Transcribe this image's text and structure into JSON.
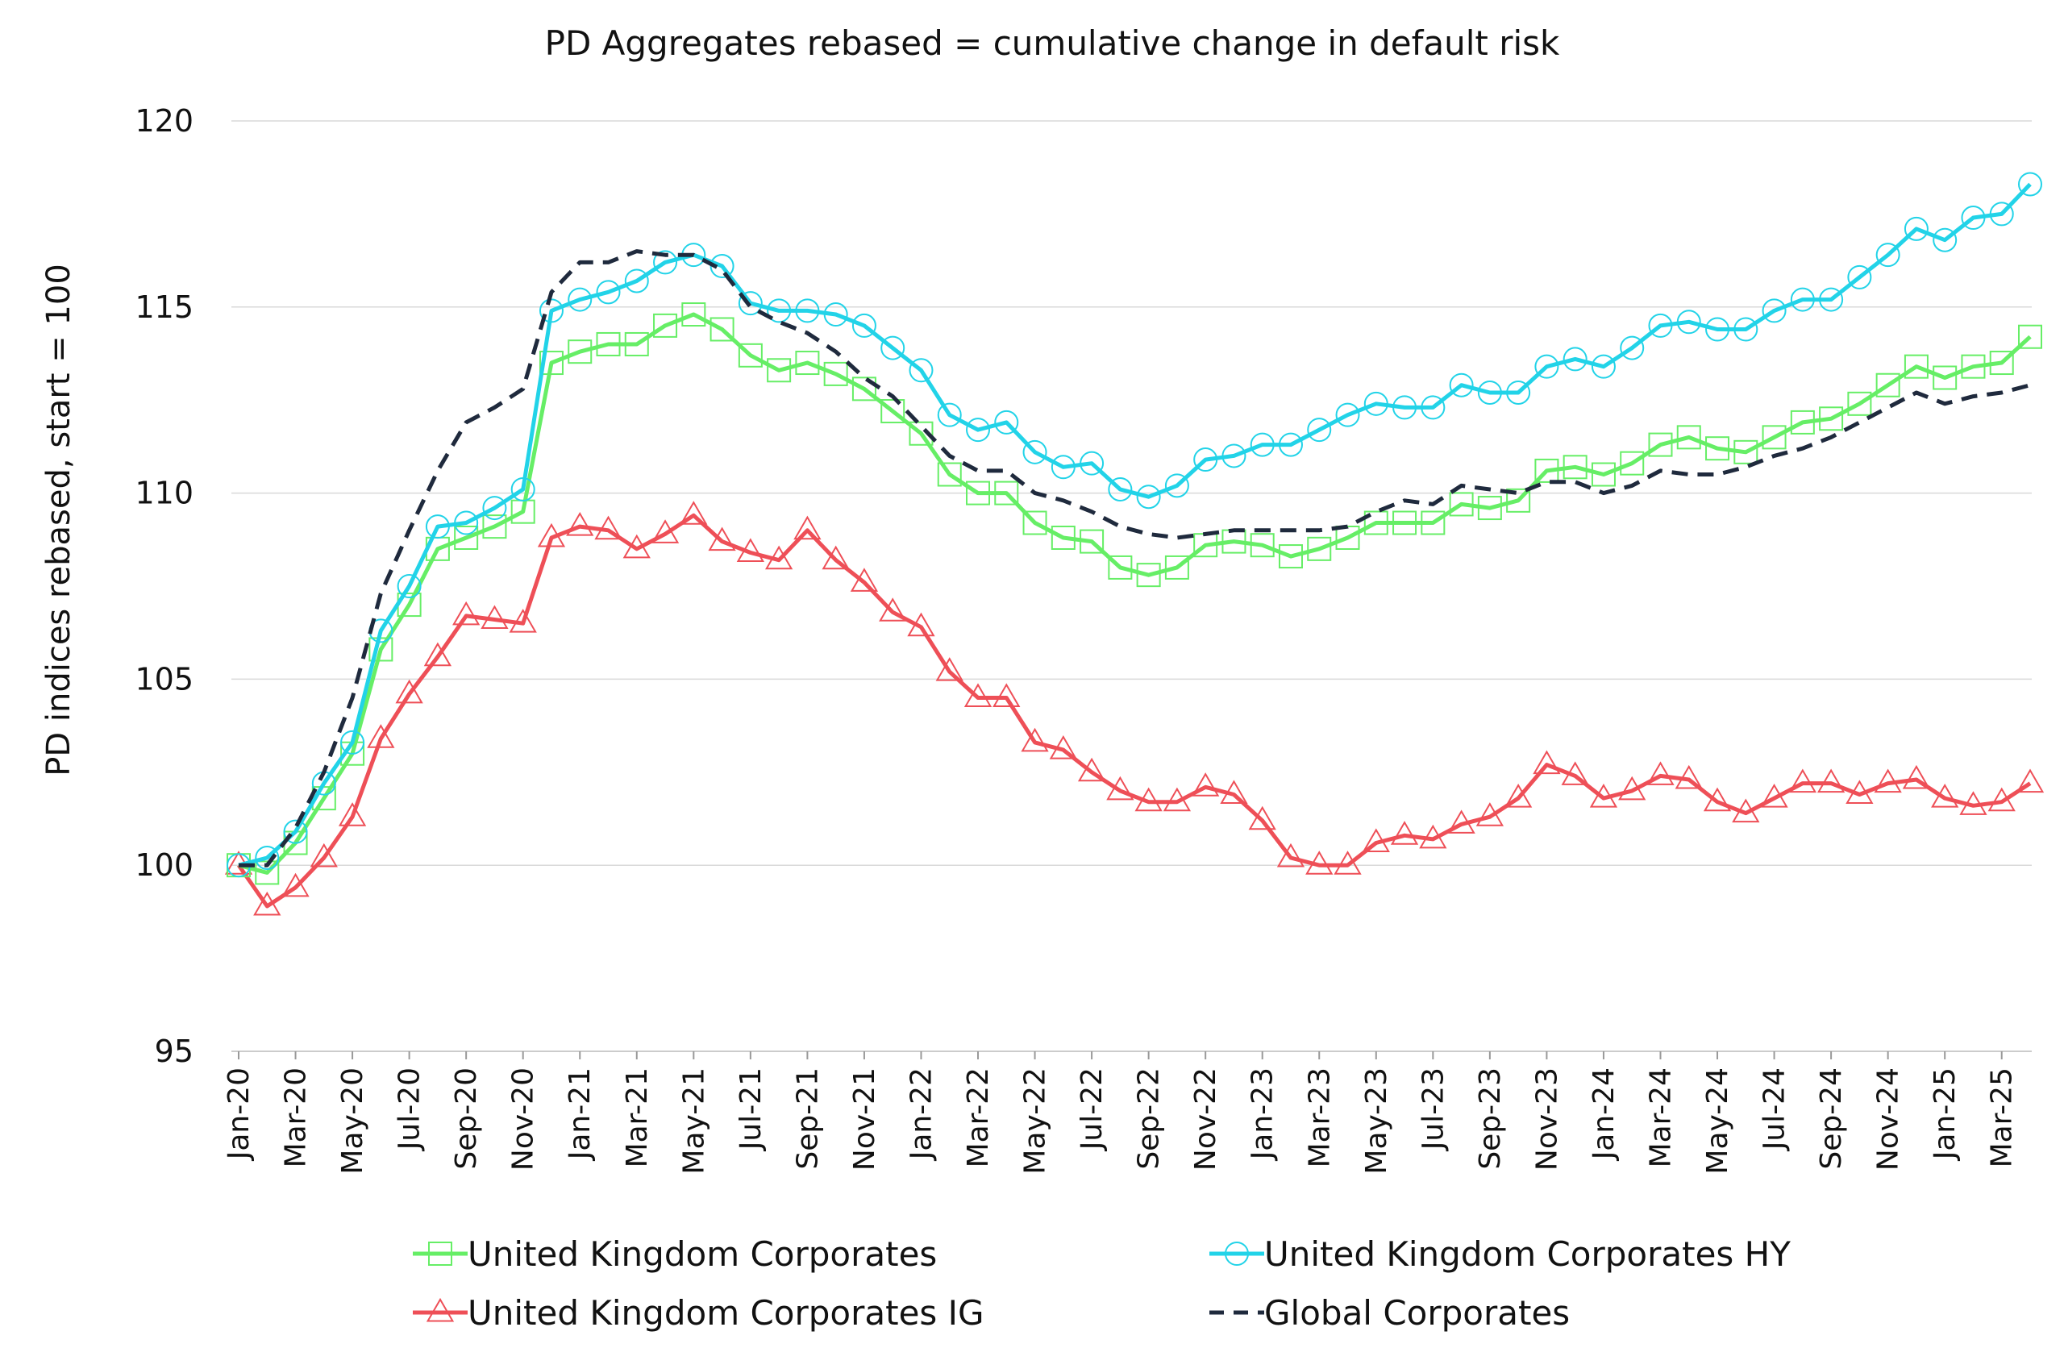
{
  "chart_data": {
    "type": "line",
    "title": "PD Aggregates rebased = cumulative change in default risk",
    "xlabel": "",
    "ylabel": "PD indices rebased, start = 100",
    "ylim": [
      95,
      120
    ],
    "yticks": [
      "95",
      "100",
      "105",
      "110",
      "115",
      "120"
    ],
    "grid": true,
    "legend_position": "bottom",
    "categories": [
      "Jan-20",
      "Feb-20",
      "Mar-20",
      "Apr-20",
      "May-20",
      "Jun-20",
      "Jul-20",
      "Aug-20",
      "Sep-20",
      "Oct-20",
      "Nov-20",
      "Dec-20",
      "Jan-21",
      "Feb-21",
      "Mar-21",
      "Apr-21",
      "May-21",
      "Jun-21",
      "Jul-21",
      "Aug-21",
      "Sep-21",
      "Oct-21",
      "Nov-21",
      "Dec-21",
      "Jan-22",
      "Feb-22",
      "Mar-22",
      "Apr-22",
      "May-22",
      "Jun-22",
      "Jul-22",
      "Aug-22",
      "Sep-22",
      "Oct-22",
      "Nov-22",
      "Dec-22",
      "Jan-23",
      "Feb-23",
      "Mar-23",
      "Apr-23",
      "May-23",
      "Jun-23",
      "Jul-23",
      "Aug-23",
      "Sep-23",
      "Oct-23",
      "Nov-23",
      "Dec-23",
      "Jan-24",
      "Feb-24",
      "Mar-24",
      "Apr-24",
      "May-24",
      "Jun-24",
      "Jul-24",
      "Aug-24",
      "Sep-24",
      "Oct-24",
      "Nov-24",
      "Dec-24",
      "Jan-25",
      "Feb-25",
      "Mar-25",
      "Apr-25"
    ],
    "x_tick_labels": [
      "Jan-20",
      "Mar-20",
      "May-20",
      "Jul-20",
      "Sep-20",
      "Nov-20",
      "Jan-21",
      "Mar-21",
      "May-21",
      "Jul-21",
      "Sep-21",
      "Nov-21",
      "Jan-22",
      "Mar-22",
      "May-22",
      "Jul-22",
      "Sep-22",
      "Nov-22",
      "Jan-23",
      "Mar-23",
      "May-23",
      "Jul-23",
      "Sep-23",
      "Nov-23",
      "Jan-24",
      "Mar-24",
      "May-24",
      "Jul-24",
      "Sep-24",
      "Nov-24",
      "Jan-25",
      "Mar-25"
    ],
    "series": [
      {
        "name": "United Kingdom Corporates",
        "color": "#66ee66",
        "marker": "square",
        "dash": "solid",
        "values": [
          100.0,
          99.8,
          100.6,
          101.8,
          103.0,
          105.8,
          107.0,
          108.5,
          108.8,
          109.1,
          109.5,
          113.5,
          113.8,
          114.0,
          114.0,
          114.5,
          114.8,
          114.4,
          113.7,
          113.3,
          113.5,
          113.2,
          112.8,
          112.2,
          111.6,
          110.5,
          110.0,
          110.0,
          109.2,
          108.8,
          108.7,
          108.0,
          107.8,
          108.0,
          108.6,
          108.7,
          108.6,
          108.3,
          108.5,
          108.8,
          109.2,
          109.2,
          109.2,
          109.7,
          109.6,
          109.8,
          110.6,
          110.7,
          110.5,
          110.8,
          111.3,
          111.5,
          111.2,
          111.1,
          111.5,
          111.9,
          112.0,
          112.4,
          112.9,
          113.4,
          113.1,
          113.4,
          113.5,
          114.2
        ]
      },
      {
        "name": "United Kingdom Corporates HY",
        "color": "#22d3e8",
        "marker": "circle",
        "dash": "solid",
        "values": [
          100.0,
          100.2,
          100.9,
          102.2,
          103.3,
          106.3,
          107.5,
          109.1,
          109.2,
          109.6,
          110.1,
          114.9,
          115.2,
          115.4,
          115.7,
          116.2,
          116.4,
          116.1,
          115.1,
          114.9,
          114.9,
          114.8,
          114.5,
          113.9,
          113.3,
          112.1,
          111.7,
          111.9,
          111.1,
          110.7,
          110.8,
          110.1,
          109.9,
          110.2,
          110.9,
          111.0,
          111.3,
          111.3,
          111.7,
          112.1,
          112.4,
          112.3,
          112.3,
          112.9,
          112.7,
          112.7,
          113.4,
          113.6,
          113.4,
          113.9,
          114.5,
          114.6,
          114.4,
          114.4,
          114.9,
          115.2,
          115.2,
          115.8,
          116.4,
          117.1,
          116.8,
          117.4,
          117.5,
          118.3
        ]
      },
      {
        "name": "United Kingdom Corporates IG",
        "color": "#ee4f57",
        "marker": "triangle",
        "dash": "solid",
        "values": [
          100.0,
          98.9,
          99.4,
          100.2,
          101.3,
          103.4,
          104.6,
          105.6,
          106.7,
          106.6,
          106.5,
          108.8,
          109.1,
          109.0,
          108.5,
          108.9,
          109.4,
          108.7,
          108.4,
          108.2,
          109.0,
          108.2,
          107.6,
          106.8,
          106.4,
          105.2,
          104.5,
          104.5,
          103.3,
          103.1,
          102.5,
          102.0,
          101.7,
          101.7,
          102.1,
          101.9,
          101.2,
          100.2,
          100.0,
          100.0,
          100.6,
          100.8,
          100.7,
          101.1,
          101.3,
          101.8,
          102.7,
          102.4,
          101.8,
          102.0,
          102.4,
          102.3,
          101.7,
          101.4,
          101.8,
          102.2,
          102.2,
          101.9,
          102.2,
          102.3,
          101.8,
          101.6,
          101.7,
          102.2
        ]
      },
      {
        "name": "Global Corporates",
        "color": "#1f2a3d",
        "marker": "none",
        "dash": "dashed",
        "values": [
          100.0,
          100.0,
          101.0,
          102.5,
          104.5,
          107.3,
          109.0,
          110.6,
          111.9,
          112.3,
          112.8,
          115.4,
          116.2,
          116.2,
          116.5,
          116.4,
          116.4,
          116.0,
          115.0,
          114.6,
          114.3,
          113.8,
          113.1,
          112.6,
          111.8,
          111.0,
          110.6,
          110.6,
          110.0,
          109.8,
          109.5,
          109.1,
          108.9,
          108.8,
          108.9,
          109.0,
          109.0,
          109.0,
          109.0,
          109.1,
          109.5,
          109.8,
          109.7,
          110.2,
          110.1,
          110.0,
          110.3,
          110.3,
          110.0,
          110.2,
          110.6,
          110.5,
          110.5,
          110.7,
          111.0,
          111.2,
          111.5,
          111.9,
          112.3,
          112.7,
          112.4,
          112.6,
          112.7,
          112.9
        ]
      }
    ]
  }
}
